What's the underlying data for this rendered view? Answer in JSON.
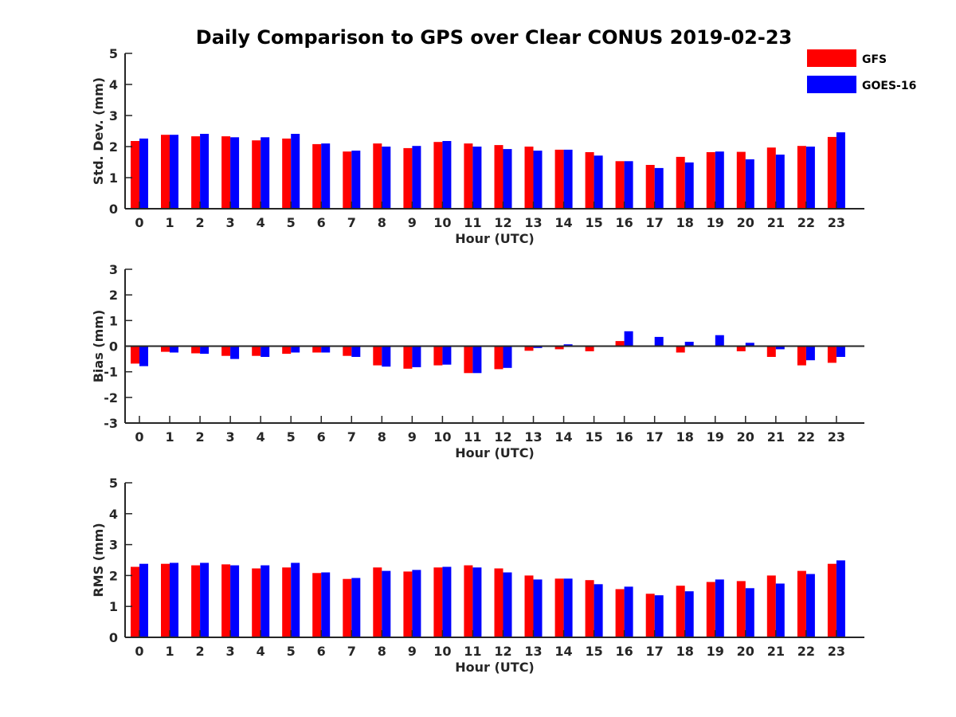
{
  "chart_data": {
    "type": "bar",
    "title": "Daily Comparison to GPS over Clear CONUS 2019-02-23",
    "colors": {
      "GFS": "#ff0000",
      "GOES-16": "#0000ff",
      "axis": "#262626"
    },
    "legend": {
      "position": "top-right",
      "entries": [
        "GFS",
        "GOES-16"
      ]
    },
    "categories": [
      "0",
      "1",
      "2",
      "3",
      "4",
      "5",
      "6",
      "7",
      "8",
      "9",
      "10",
      "11",
      "12",
      "13",
      "14",
      "15",
      "16",
      "17",
      "18",
      "19",
      "20",
      "21",
      "22",
      "23"
    ],
    "panels": [
      {
        "name": "std-dev",
        "xlabel": "Hour (UTC)",
        "ylabel": "Std. Dev. (mm)",
        "ylim": [
          0,
          5
        ],
        "yticks": [
          0,
          1,
          2,
          3,
          4,
          5
        ],
        "series": [
          {
            "name": "GFS",
            "values": [
              2.18,
              2.38,
              2.33,
              2.33,
              2.2,
              2.26,
              2.08,
              1.84,
              2.1,
              1.95,
              2.15,
              2.1,
              2.05,
              2.0,
              1.9,
              1.82,
              1.53,
              1.41,
              1.67,
              1.82,
              1.83,
              1.97,
              2.02,
              2.31
            ]
          },
          {
            "name": "GOES-16",
            "values": [
              2.26,
              2.38,
              2.41,
              2.3,
              2.3,
              2.41,
              2.1,
              1.87,
              2.0,
              2.02,
              2.18,
              2.0,
              1.92,
              1.87,
              1.9,
              1.71,
              1.53,
              1.31,
              1.49,
              1.84,
              1.59,
              1.74,
              2.0,
              2.46
            ]
          }
        ]
      },
      {
        "name": "bias",
        "xlabel": "Hour (UTC)",
        "ylabel": "Bias (mm)",
        "ylim": [
          -3,
          3
        ],
        "yticks": [
          -3,
          -2,
          -1,
          0,
          1,
          2,
          3
        ],
        "series": [
          {
            "name": "GFS",
            "values": [
              -0.68,
              -0.22,
              -0.28,
              -0.38,
              -0.38,
              -0.3,
              -0.25,
              -0.38,
              -0.75,
              -0.88,
              -0.75,
              -1.05,
              -0.9,
              -0.18,
              -0.12,
              -0.2,
              0.2,
              0.0,
              -0.25,
              0.0,
              -0.2,
              -0.42,
              -0.75,
              -0.65
            ]
          },
          {
            "name": "GOES-16",
            "values": [
              -0.78,
              -0.25,
              -0.3,
              -0.5,
              -0.42,
              -0.25,
              -0.25,
              -0.42,
              -0.8,
              -0.82,
              -0.72,
              -1.05,
              -0.85,
              -0.07,
              0.07,
              0.03,
              0.58,
              0.36,
              0.17,
              0.43,
              0.13,
              -0.12,
              -0.55,
              -0.42
            ]
          }
        ]
      },
      {
        "name": "rms",
        "xlabel": "Hour (UTC)",
        "ylabel": "RMS (mm)",
        "ylim": [
          0,
          5
        ],
        "yticks": [
          0,
          1,
          2,
          3,
          4,
          5
        ],
        "series": [
          {
            "name": "GFS",
            "values": [
              2.28,
              2.38,
              2.33,
              2.36,
              2.23,
              2.26,
              2.08,
              1.89,
              2.26,
              2.13,
              2.26,
              2.33,
              2.23,
              2.0,
              1.9,
              1.85,
              1.56,
              1.41,
              1.67,
              1.79,
              1.82,
              2.0,
              2.15,
              2.38
            ]
          },
          {
            "name": "GOES-16",
            "values": [
              2.38,
              2.41,
              2.41,
              2.33,
              2.33,
              2.41,
              2.1,
              1.92,
              2.15,
              2.18,
              2.28,
              2.26,
              2.1,
              1.87,
              1.9,
              1.72,
              1.64,
              1.36,
              1.49,
              1.87,
              1.59,
              1.74,
              2.05,
              2.49
            ]
          }
        ]
      }
    ]
  }
}
